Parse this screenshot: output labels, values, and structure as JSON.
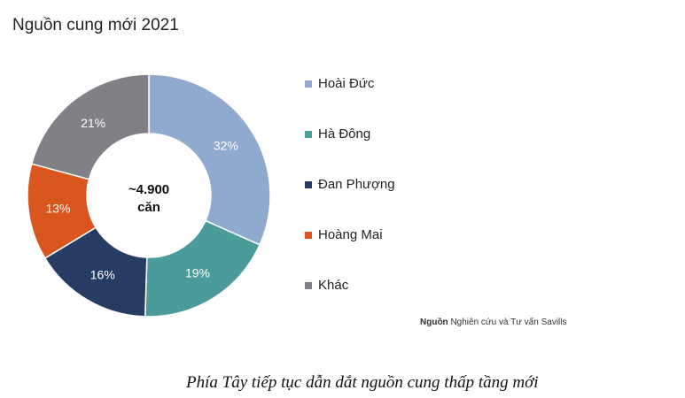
{
  "chart_data": {
    "type": "pie",
    "title": "Nguồn cung mới 2021",
    "center_label": [
      "~4.900",
      "căn"
    ],
    "categories": [
      "Hoài Đức",
      "Hà Đông",
      "Đan Phượng",
      "Hoàng Mai",
      "Khác"
    ],
    "values": [
      32,
      19,
      16,
      13,
      21
    ],
    "value_labels": [
      "32%",
      "19%",
      "16%",
      "13%",
      "21%"
    ],
    "colors": [
      "#8fa9cf",
      "#4b9b9b",
      "#263c63",
      "#d9571f",
      "#7f8187"
    ],
    "legend_position": "right",
    "donut": true
  },
  "source": {
    "label": "Nguồn",
    "text": "Nghiên cứu và Tư vấn Savills"
  },
  "caption": "Phía Tây tiếp tục dẫn dắt nguồn cung thấp tầng mới"
}
